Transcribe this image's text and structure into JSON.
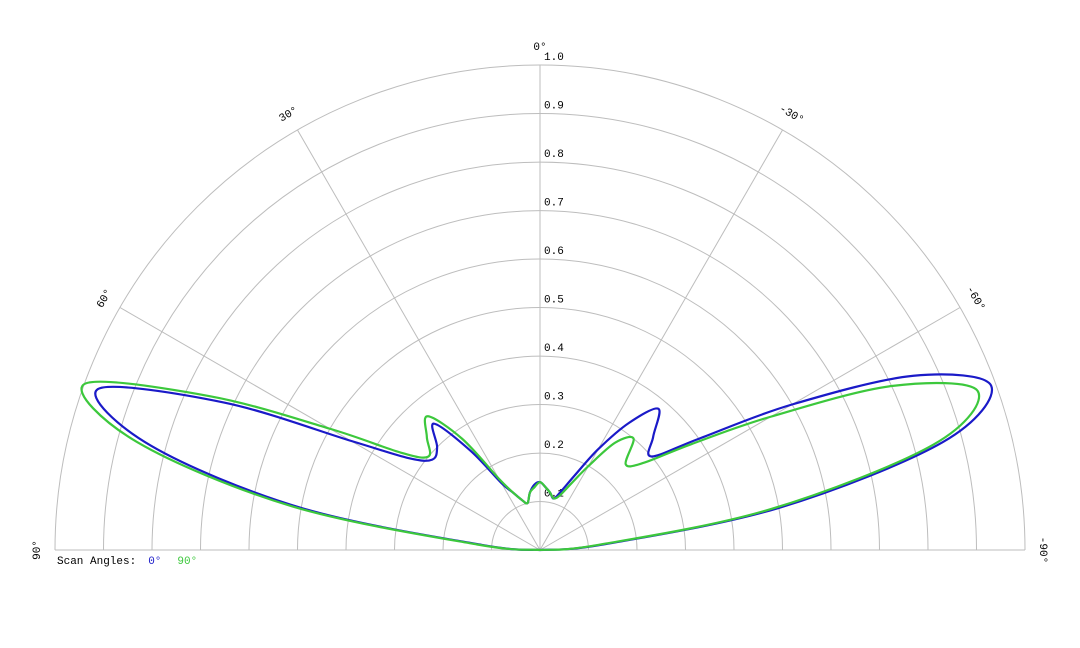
{
  "chart_data": {
    "type": "polar",
    "legend_title": "Scan Angles:",
    "x": [
      -90,
      -85,
      -80,
      -75,
      -70,
      -65,
      -60,
      -55,
      -50,
      -45,
      -40,
      -35,
      -30,
      -25,
      -20,
      -15,
      -10,
      -5,
      0,
      5,
      10,
      15,
      20,
      25,
      30,
      35,
      40,
      45,
      50,
      55,
      60,
      65,
      70,
      75,
      80,
      85,
      90
    ],
    "series": [
      {
        "name": "0°",
        "color": "#1a1ac8",
        "values": [
          0,
          0.13,
          0.5,
          0.86,
          0.99,
          0.85,
          0.6,
          0.4,
          0.3,
          0.33,
          0.38,
          0.32,
          0.24,
          0.17,
          0.13,
          0.11,
          0.12,
          0.13,
          0.14,
          0.135,
          0.12,
          0.1,
          0.11,
          0.13,
          0.16,
          0.25,
          0.34,
          0.3,
          0.29,
          0.33,
          0.45,
          0.72,
          0.97,
          0.83,
          0.5,
          0.12,
          0
        ]
      },
      {
        "name": "90°",
        "color": "#3cc83c",
        "values": [
          0,
          0.12,
          0.48,
          0.84,
          0.96,
          0.8,
          0.55,
          0.38,
          0.28,
          0.25,
          0.3,
          0.27,
          0.2,
          0.15,
          0.12,
          0.11,
          0.12,
          0.13,
          0.14,
          0.13,
          0.12,
          0.1,
          0.11,
          0.13,
          0.17,
          0.28,
          0.36,
          0.33,
          0.3,
          0.35,
          0.5,
          0.75,
          1.0,
          0.86,
          0.52,
          0.13,
          0
        ]
      }
    ],
    "rlim": [
      0,
      1
    ],
    "rticks": [
      0.1,
      0.2,
      0.3,
      0.4,
      0.5,
      0.6,
      0.7,
      0.8,
      0.9,
      {
        "value": 1,
        "label": "1.0"
      }
    ],
    "angle_ticks": [
      {
        "value": 90,
        "label": "90°"
      },
      {
        "value": 60,
        "label": "60°"
      },
      {
        "value": 30,
        "label": "30°"
      },
      {
        "value": 0,
        "label": "0°"
      },
      {
        "value": -30,
        "label": "-30°"
      },
      {
        "value": -60,
        "label": "-60°"
      },
      {
        "value": -90,
        "label": "-90°"
      }
    ],
    "grid": true
  }
}
